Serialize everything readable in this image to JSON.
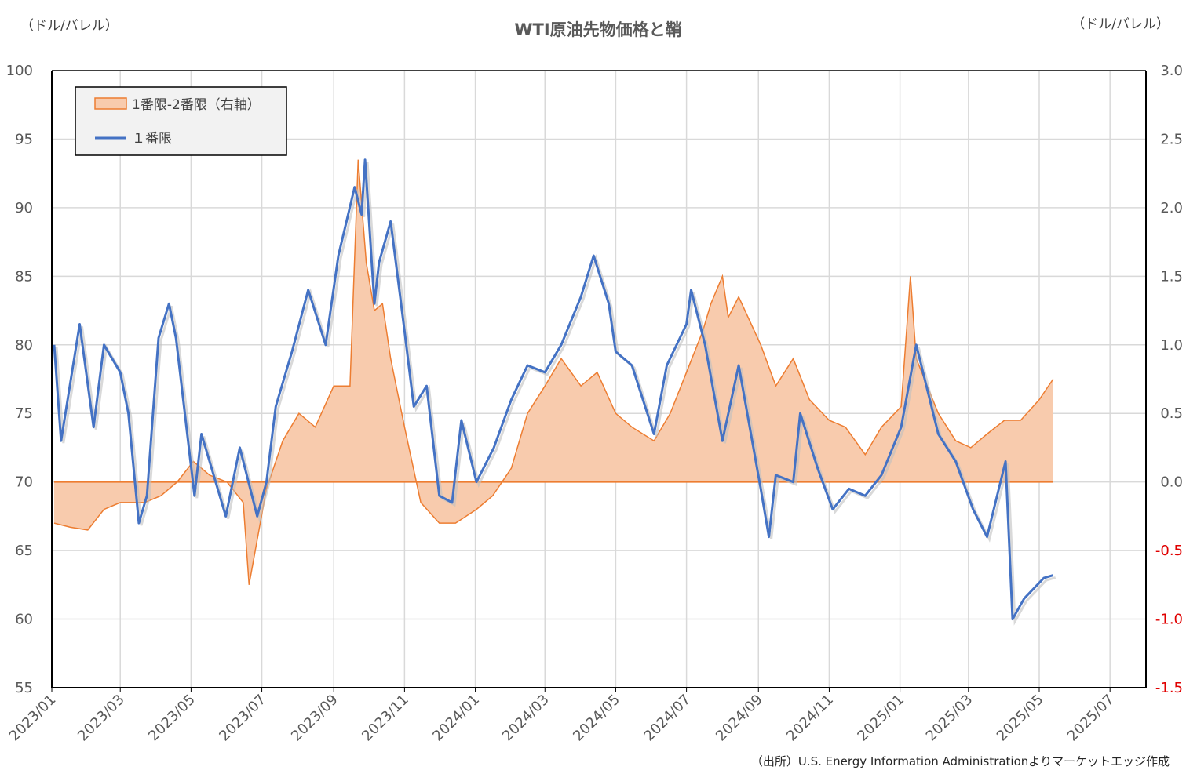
{
  "chart_data": {
    "type": "line",
    "title": "WTI原油先物価格と鞘",
    "ylabel_left": "（ドル/バレル）",
    "ylabel_right": "（ドル/バレル）",
    "source": "（出所）U.S. Energy Information Administrationよりマーケットエッジ作成",
    "ylim": [
      55,
      100
    ],
    "ylim_right": [
      -1.5,
      3.0
    ],
    "yticks": [
      "100",
      "95",
      "90",
      "85",
      "80",
      "75",
      "70",
      "65",
      "60",
      "55"
    ],
    "yticks_right": [
      "3.0",
      "2.5",
      "2.0",
      "1.5",
      "1.0",
      "0.5",
      "0.0",
      "-0.5",
      "-1.0",
      "-1.5"
    ],
    "xticks": [
      "2023/01",
      "2023/03",
      "2023/05",
      "2023/07",
      "2023/09",
      "2023/11",
      "2024/01",
      "2024/03",
      "2024/05",
      "2024/07",
      "2024/09",
      "2024/11",
      "2025/01",
      "2025/03",
      "2025/05",
      "2025/07"
    ],
    "grid": true,
    "legend_position": "top-left",
    "colors": {
      "spread": "#ed7d31",
      "spread_fill": "#f8cbad",
      "front": "#4472c4",
      "negative_tick": "#e00000"
    },
    "series": [
      {
        "name": "1番限-2番限（右軸）",
        "axis": "right",
        "kind": "area",
        "x": [
          "2023-01-03",
          "2023-01-17",
          "2023-02-01",
          "2023-02-15",
          "2023-03-01",
          "2023-03-15",
          "2023-03-22",
          "2023-04-05",
          "2023-04-19",
          "2023-05-03",
          "2023-05-17",
          "2023-06-01",
          "2023-06-15",
          "2023-06-20",
          "2023-07-05",
          "2023-07-19",
          "2023-08-02",
          "2023-08-16",
          "2023-09-01",
          "2023-09-15",
          "2023-09-22",
          "2023-09-29",
          "2023-10-06",
          "2023-10-13",
          "2023-10-20",
          "2023-11-01",
          "2023-11-15",
          "2023-12-01",
          "2023-12-15",
          "2024-01-02",
          "2024-01-16",
          "2024-02-01",
          "2024-02-15",
          "2024-03-01",
          "2024-03-15",
          "2024-04-01",
          "2024-04-15",
          "2024-05-01",
          "2024-05-15",
          "2024-06-03",
          "2024-06-17",
          "2024-07-01",
          "2024-07-15",
          "2024-07-22",
          "2024-08-01",
          "2024-08-06",
          "2024-08-15",
          "2024-09-03",
          "2024-09-16",
          "2024-10-01",
          "2024-10-15",
          "2024-11-01",
          "2024-11-15",
          "2024-12-02",
          "2024-12-16",
          "2025-01-02",
          "2025-01-10",
          "2025-01-15",
          "2025-02-03",
          "2025-02-18",
          "2025-03-03",
          "2025-03-17",
          "2025-04-01",
          "2025-04-15",
          "2025-05-01",
          "2025-05-13"
        ],
        "values": [
          -0.3,
          -0.33,
          -0.35,
          -0.2,
          -0.15,
          -0.15,
          -0.15,
          -0.1,
          0.0,
          0.15,
          0.05,
          0.0,
          -0.15,
          -0.75,
          -0.05,
          0.3,
          0.5,
          0.4,
          0.7,
          0.7,
          2.35,
          1.6,
          1.25,
          1.3,
          0.9,
          0.4,
          -0.15,
          -0.3,
          -0.3,
          -0.2,
          -0.1,
          0.1,
          0.5,
          0.7,
          0.9,
          0.7,
          0.8,
          0.5,
          0.4,
          0.3,
          0.5,
          0.8,
          1.1,
          1.3,
          1.5,
          1.2,
          1.35,
          1.0,
          0.7,
          0.9,
          0.6,
          0.45,
          0.4,
          0.2,
          0.4,
          0.55,
          1.5,
          0.9,
          0.5,
          0.3,
          0.25,
          0.35,
          0.45,
          0.45,
          0.6,
          0.75
        ]
      },
      {
        "name": "１番限",
        "axis": "left",
        "kind": "line",
        "x": [
          "2023-01-03",
          "2023-01-09",
          "2023-01-25",
          "2023-02-06",
          "2023-02-15",
          "2023-03-01",
          "2023-03-08",
          "2023-03-17",
          "2023-03-24",
          "2023-04-03",
          "2023-04-12",
          "2023-04-18",
          "2023-05-04",
          "2023-05-10",
          "2023-05-31",
          "2023-06-12",
          "2023-06-27",
          "2023-07-05",
          "2023-07-13",
          "2023-07-27",
          "2023-08-10",
          "2023-08-25",
          "2023-09-05",
          "2023-09-19",
          "2023-09-25",
          "2023-09-28",
          "2023-10-06",
          "2023-10-10",
          "2023-10-20",
          "2023-11-01",
          "2023-11-09",
          "2023-11-20",
          "2023-12-01",
          "2023-12-12",
          "2023-12-20",
          "2024-01-02",
          "2024-01-17",
          "2024-02-01",
          "2024-02-15",
          "2024-03-01",
          "2024-03-15",
          "2024-04-01",
          "2024-04-12",
          "2024-04-25",
          "2024-05-01",
          "2024-05-15",
          "2024-06-03",
          "2024-06-14",
          "2024-07-01",
          "2024-07-05",
          "2024-07-17",
          "2024-08-01",
          "2024-08-15",
          "2024-09-03",
          "2024-09-10",
          "2024-09-16",
          "2024-10-01",
          "2024-10-07",
          "2024-10-22",
          "2024-11-04",
          "2024-11-18",
          "2024-12-02",
          "2024-12-16",
          "2025-01-02",
          "2025-01-15",
          "2025-02-03",
          "2025-02-18",
          "2025-03-05",
          "2025-03-17",
          "2025-04-02",
          "2025-04-08",
          "2025-04-18",
          "2025-05-05",
          "2025-05-13"
        ],
        "values": [
          80.0,
          73.0,
          81.5,
          74.0,
          80.0,
          78.0,
          75.0,
          67.0,
          69.0,
          80.5,
          83.0,
          80.5,
          69.0,
          73.5,
          67.5,
          72.5,
          67.5,
          70.0,
          75.5,
          79.5,
          84.0,
          80.0,
          86.5,
          91.5,
          89.5,
          93.5,
          83.0,
          86.0,
          89.0,
          81.0,
          75.5,
          77.0,
          69.0,
          68.5,
          74.5,
          70.0,
          72.5,
          76.0,
          78.5,
          78.0,
          80.0,
          83.5,
          86.5,
          83.0,
          79.5,
          78.5,
          73.5,
          78.5,
          81.5,
          84.0,
          80.0,
          73.0,
          78.5,
          69.5,
          66.0,
          70.5,
          70.0,
          75.0,
          71.0,
          68.0,
          69.5,
          69.0,
          70.5,
          74.0,
          80.0,
          73.5,
          71.5,
          68.0,
          66.0,
          71.5,
          60.0,
          61.5,
          63.0,
          63.2
        ]
      }
    ]
  }
}
